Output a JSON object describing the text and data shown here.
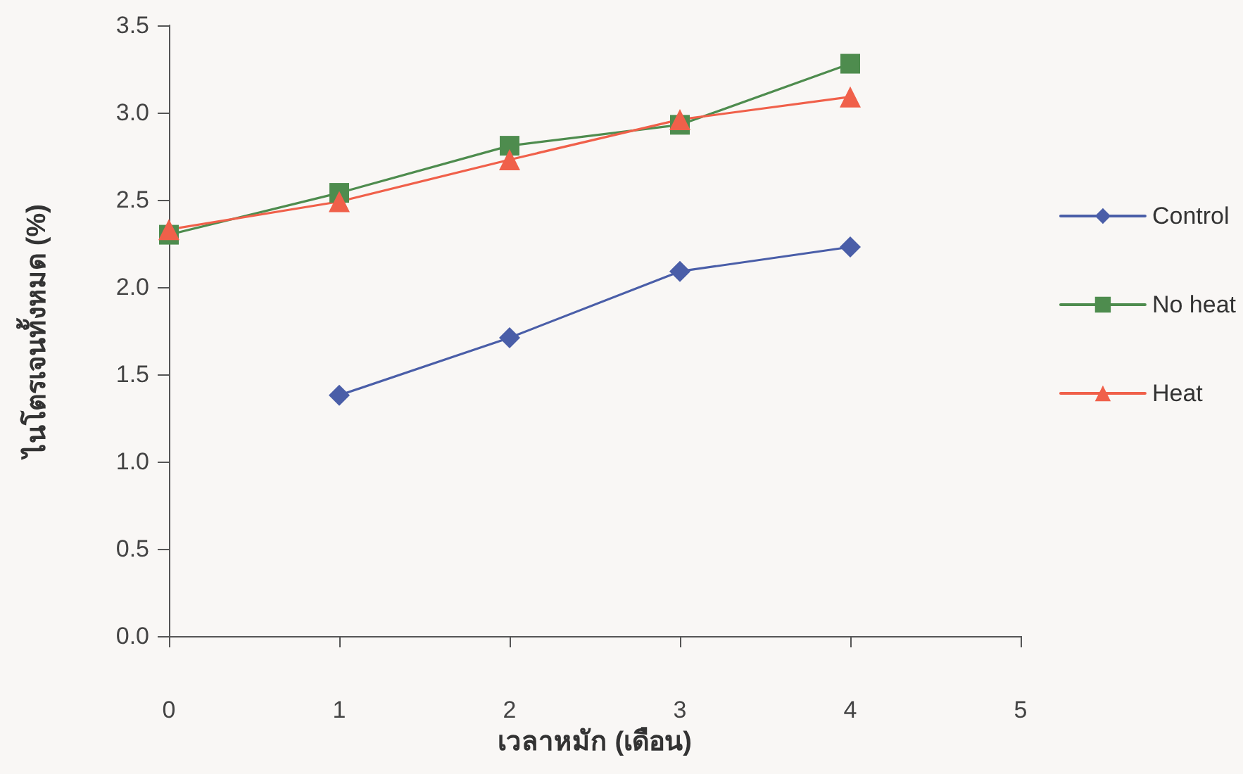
{
  "chart_data": {
    "type": "line",
    "xlabel": "เวลาหมัก (เดือน)",
    "ylabel": "ไนโตรเจนทั้งหมด (%)",
    "x": [
      0,
      1,
      2,
      3,
      4
    ],
    "series": [
      {
        "name": "Control",
        "color": "#4a5ea8",
        "marker": "diamond",
        "values": [
          null,
          1.38,
          1.71,
          2.09,
          2.23
        ]
      },
      {
        "name": "No heat",
        "color": "#4e8c4e",
        "marker": "square",
        "values": [
          2.3,
          2.54,
          2.81,
          2.93,
          3.28
        ]
      },
      {
        "name": "Heat",
        "color": "#f0604a",
        "marker": "triangle",
        "values": [
          2.33,
          2.49,
          2.73,
          2.96,
          3.09
        ]
      }
    ],
    "xlim": [
      0,
      5
    ],
    "xticks": [
      0,
      1,
      2,
      3,
      4,
      5
    ],
    "ylim": [
      0,
      3.5
    ],
    "yticks": [
      {
        "value": 0,
        "label": "0.0"
      },
      {
        "value": 0.5,
        "label": "0.5"
      },
      {
        "value": 1,
        "label": "1.0"
      },
      {
        "value": 1.5,
        "label": "1.5"
      },
      {
        "value": 2,
        "label": "2.0"
      },
      {
        "value": 2.5,
        "label": "2.5"
      },
      {
        "value": 3,
        "label": "3.0"
      },
      {
        "value": 3.5,
        "label": "3.5"
      }
    ],
    "grid": false,
    "legend": "right"
  }
}
